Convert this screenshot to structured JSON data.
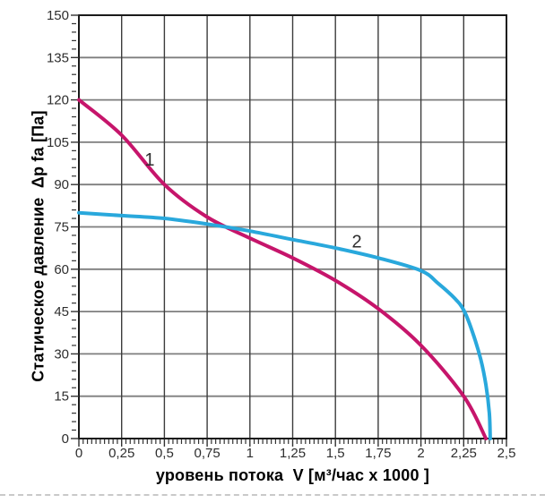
{
  "chart_data": {
    "type": "line",
    "title": "",
    "xlabel": "уровень потока  V [м³/час x 1000 ]",
    "ylabel": "Статическое давление  Δp fa [Па]",
    "x_unit": "м³/час x 1000",
    "y_unit": "Па",
    "xlim": [
      0,
      2.5
    ],
    "ylim": [
      0,
      150
    ],
    "grid": true,
    "legend_position": "none (curves labeled inline)",
    "x_tick_values": [
      0,
      0.25,
      0.5,
      0.75,
      1,
      1.25,
      1.5,
      1.75,
      2,
      2.25,
      2.5
    ],
    "x_tick_labels": [
      "0",
      "0,25",
      "0,5",
      "0,75",
      "1",
      "1,25",
      "1,5",
      "1,75",
      "2",
      "2,25",
      "2,5"
    ],
    "y_tick_values": [
      0,
      15,
      30,
      45,
      60,
      75,
      90,
      105,
      120,
      135,
      150
    ],
    "y_tick_labels": [
      "0",
      "15",
      "30",
      "45",
      "60",
      "75",
      "90",
      "105",
      "120",
      "135",
      "150"
    ],
    "x_minor_step": 0.025,
    "y_minor_step": 3,
    "series": [
      {
        "name": "1",
        "color": "#c6156b",
        "label": {
          "text": "1",
          "x": 0.414,
          "y": 99
        },
        "points": [
          [
            0,
            120
          ],
          [
            0.25,
            107.5
          ],
          [
            0.5,
            90
          ],
          [
            0.75,
            78.5
          ],
          [
            1,
            71
          ],
          [
            1.25,
            64
          ],
          [
            1.5,
            56
          ],
          [
            1.75,
            46
          ],
          [
            2,
            33
          ],
          [
            2.25,
            15
          ],
          [
            2.38,
            0
          ]
        ]
      },
      {
        "name": "2",
        "color": "#29a8dc",
        "label": {
          "text": "2",
          "x": 1.625,
          "y": 70
        },
        "points": [
          [
            0,
            80
          ],
          [
            0.25,
            79
          ],
          [
            0.5,
            78
          ],
          [
            0.75,
            76
          ],
          [
            1,
            73.5
          ],
          [
            1.25,
            70.5
          ],
          [
            1.5,
            67.5
          ],
          [
            1.75,
            64
          ],
          [
            2,
            59.5
          ],
          [
            2.1,
            55
          ],
          [
            2.2,
            49.5
          ],
          [
            2.25,
            45.5
          ],
          [
            2.3,
            38
          ],
          [
            2.35,
            28
          ],
          [
            2.38,
            19
          ],
          [
            2.4,
            9
          ],
          [
            2.405,
            0
          ]
        ]
      }
    ],
    "style": {
      "background": "#ffffff",
      "border_color": "#1a1a1a",
      "grid_vertical_color": "#3c3c3c",
      "grid_horizontal_color": "#7e7e7e",
      "tick_color": "#333333",
      "tick_label_color": "#2e2e2e",
      "title_color": "#000000",
      "curve_label_color": "#2e2e2e"
    }
  }
}
